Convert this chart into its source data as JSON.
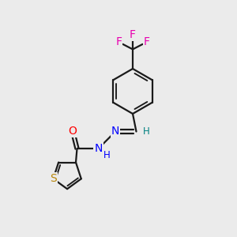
{
  "bg_color": "#ebebeb",
  "bond_color": "#1a1a1a",
  "bond_width": 1.6,
  "atom_colors": {
    "F": "#e800b0",
    "O": "#ff0000",
    "N": "#0000ff",
    "S": "#b8860b",
    "CH_teal": "#008080",
    "C": "#1a1a1a"
  },
  "font_size_atom": 10,
  "font_size_small": 8.5,
  "figsize": [
    3.0,
    3.0
  ],
  "dpi": 100
}
